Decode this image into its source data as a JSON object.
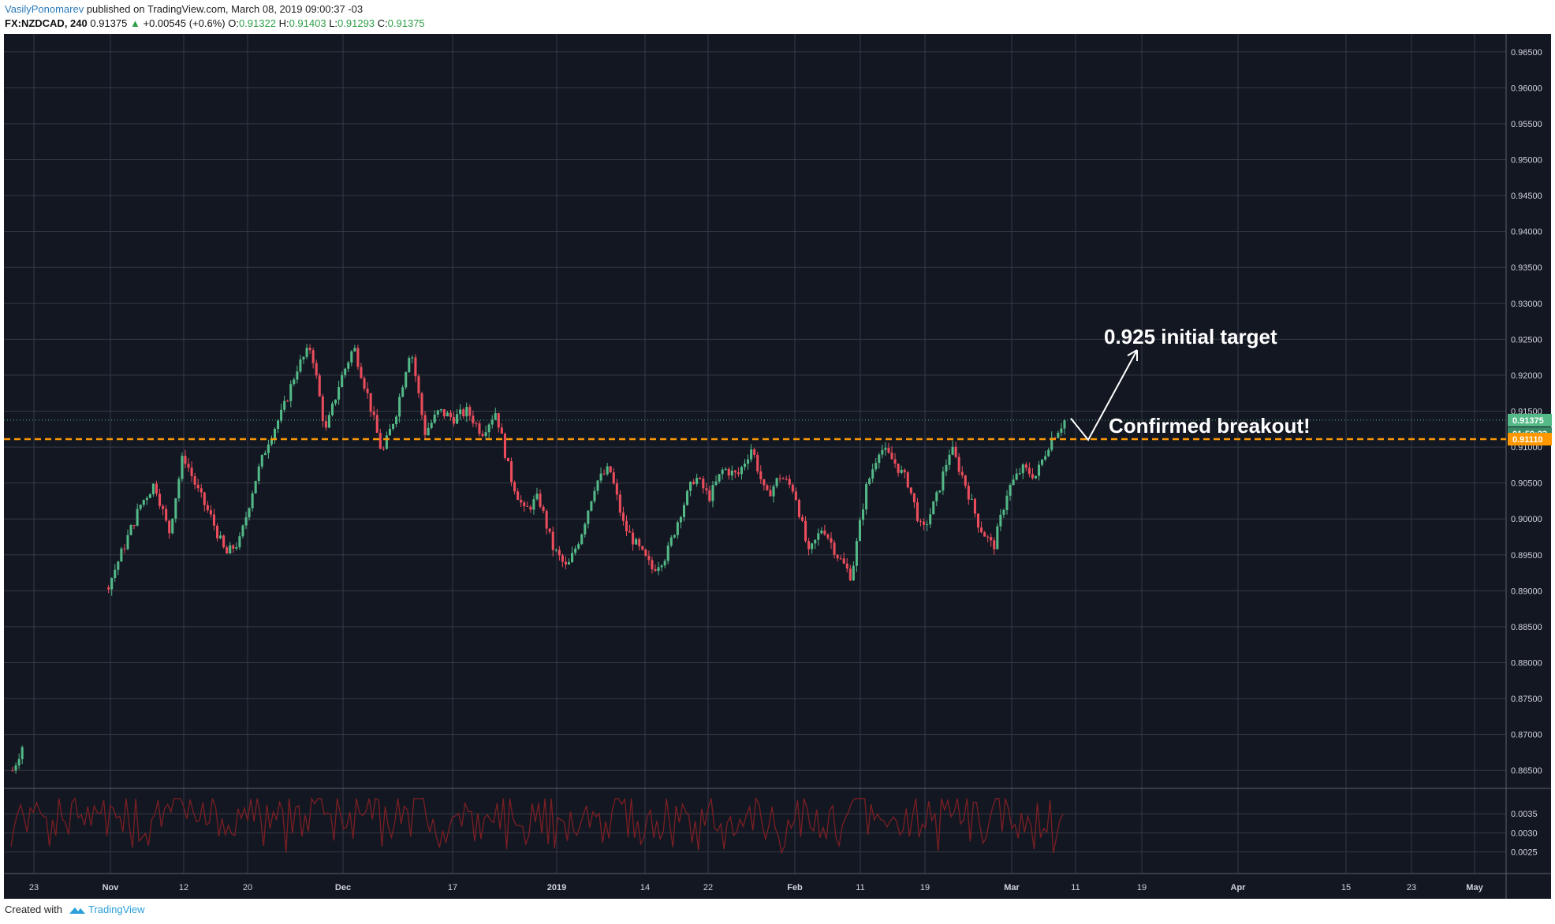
{
  "header": {
    "author": "VasilyPonomarev",
    "published": "published on TradingView.com, March 08, 2019 09:00:37 -03",
    "symbol": "FX:NZDCAD, 240",
    "last": "0.91375",
    "change": "+0.00545 (+0.6%)",
    "o_label": "O:",
    "o_value": "0.91322",
    "h_label": "H:",
    "h_value": "0.91403",
    "l_label": "L:",
    "l_value": "0.91293",
    "c_label": "C:",
    "c_value": "0.91375"
  },
  "footer": {
    "created_with": "Created with",
    "brand": "TradingView"
  },
  "annotations": {
    "target": "0.925 initial target",
    "breakout": "Confirmed breakout!"
  },
  "price_tags": {
    "last": "0.91375",
    "countdown": "01:59:23",
    "level": "0.91110"
  },
  "colors": {
    "background": "#131722",
    "grid": "#363a45",
    "up": "#53b987",
    "down": "#eb4d5c",
    "level": "#ff9800",
    "indicator": "#7b1f23"
  },
  "chart_data": {
    "type": "candlestick",
    "symbol": "FX:NZDCAD",
    "interval": "240",
    "y_ticks": [
      "0.96500",
      "0.96000",
      "0.95500",
      "0.95000",
      "0.94500",
      "0.94000",
      "0.93500",
      "0.93000",
      "0.92500",
      "0.92000",
      "0.91500",
      "0.91000",
      "0.90500",
      "0.90000",
      "0.89500",
      "0.89000",
      "0.88500",
      "0.88000",
      "0.87500",
      "0.87000",
      "0.86500"
    ],
    "ylim": [
      0.8625,
      0.9675
    ],
    "x_ticks": [
      "23",
      "Nov",
      "12",
      "20",
      "Dec",
      "17",
      "2019",
      "14",
      "22",
      "Feb",
      "11",
      "19",
      "Mar",
      "11",
      "19",
      "Apr",
      "15",
      "23",
      "May"
    ],
    "horizontal_level": 0.9111,
    "last_price": 0.91375,
    "anchor_prices": [
      [
        0.865,
        0.865
      ],
      [
        0.87,
        0.87
      ],
      [
        0.876,
        0.876
      ],
      [
        0.88,
        0.88
      ],
      [
        0.886,
        0.886
      ],
      [
        0.893,
        0.893
      ],
      [
        0.888,
        0.888
      ],
      [
        0.892,
        0.892
      ],
      [
        0.897,
        0.897
      ],
      [
        0.902,
        0.902
      ],
      [
        0.905,
        0.905
      ],
      [
        0.898,
        0.898
      ],
      [
        0.909,
        0.909
      ],
      [
        0.904,
        0.904
      ],
      [
        0.9,
        0.9
      ],
      [
        0.895,
        0.895
      ],
      [
        0.897,
        0.897
      ],
      [
        0.905,
        0.905
      ],
      [
        0.911,
        0.911
      ],
      [
        0.915,
        0.915
      ],
      [
        0.921,
        0.921
      ],
      [
        0.924,
        0.924
      ],
      [
        0.912,
        0.912
      ],
      [
        0.919,
        0.919
      ],
      [
        0.924,
        0.924
      ],
      [
        0.917,
        0.917
      ],
      [
        0.909,
        0.909
      ],
      [
        0.915,
        0.915
      ],
      [
        0.924,
        0.924
      ],
      [
        0.912,
        0.912
      ],
      [
        0.915,
        0.915
      ],
      [
        0.914,
        0.914
      ],
      [
        0.915,
        0.915
      ],
      [
        0.912,
        0.912
      ],
      [
        0.915,
        0.915
      ],
      [
        0.906,
        0.906
      ],
      [
        0.901,
        0.901
      ],
      [
        0.903,
        0.903
      ],
      [
        0.896,
        0.896
      ],
      [
        0.893,
        0.893
      ],
      [
        0.898,
        0.898
      ],
      [
        0.905,
        0.905
      ],
      [
        0.907,
        0.907
      ],
      [
        0.899,
        0.899
      ],
      [
        0.896,
        0.896
      ],
      [
        0.893,
        0.893
      ],
      [
        0.895,
        0.895
      ],
      [
        0.901,
        0.901
      ],
      [
        0.906,
        0.906
      ],
      [
        0.903,
        0.903
      ],
      [
        0.907,
        0.907
      ],
      [
        0.906,
        0.906
      ],
      [
        0.91,
        0.91
      ],
      [
        0.903,
        0.903
      ],
      [
        0.906,
        0.906
      ],
      [
        0.904,
        0.904
      ],
      [
        0.895,
        0.895
      ],
      [
        0.899,
        0.899
      ],
      [
        0.895,
        0.895
      ],
      [
        0.892,
        0.892
      ],
      [
        0.904,
        0.904
      ],
      [
        0.91,
        0.91
      ],
      [
        0.908,
        0.908
      ],
      [
        0.905,
        0.905
      ],
      [
        0.898,
        0.898
      ],
      [
        0.903,
        0.903
      ],
      [
        0.91,
        0.91
      ],
      [
        0.905,
        0.905
      ],
      [
        0.899,
        0.899
      ],
      [
        0.896,
        0.896
      ],
      [
        0.904,
        0.904
      ],
      [
        0.907,
        0.907
      ],
      [
        0.906,
        0.906
      ],
      [
        0.911,
        0.911
      ],
      [
        0.9137,
        0.9137
      ]
    ],
    "indicator": {
      "y_ticks": [
        "0.0035",
        "0.0030",
        "0.0025"
      ],
      "ylim": [
        0.0021,
        0.004
      ]
    }
  }
}
